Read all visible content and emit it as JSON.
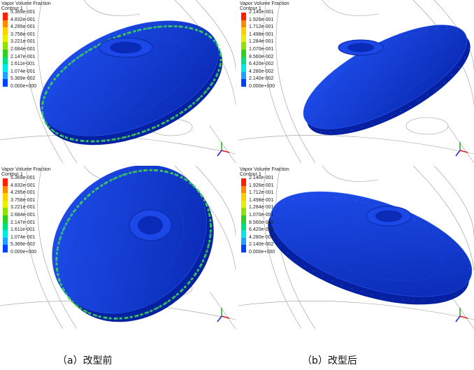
{
  "legend_colors": [
    "#ff2000",
    "#ff8800",
    "#ffd000",
    "#e8f000",
    "#90e000",
    "#30d020",
    "#00e080",
    "#00e8e8",
    "#20a0ff",
    "#0040ff"
  ],
  "disc_color": "#0a35d8",
  "panels": [
    {
      "title": "Vapor Volume Fraction",
      "subtitle": "Contour 1",
      "labels": [
        "5.369e-001",
        "4.832e-001",
        "4.295e-001",
        "3.758e-001",
        "3.221e-001",
        "2.684e-001",
        "2.147e-001",
        "1.611e-001",
        "1.074e-001",
        "5.369e-002",
        "0.000e+000"
      ]
    },
    {
      "title": "Vapor Volume Fraction",
      "subtitle": "Contour 1",
      "labels": [
        "2.140e-001",
        "1.926e-001",
        "1.712e-001",
        "1.498e-001",
        "1.284e-001",
        "1.070e-001",
        "8.560e-002",
        "6.420e-002",
        "4.280e-002",
        "2.140e-002",
        "0.000e+000"
      ]
    },
    {
      "title": "Vapor Volume Fraction",
      "subtitle": "Contour 1",
      "labels": [
        "5.369e-001",
        "4.832e-001",
        "4.295e-001",
        "3.758e-001",
        "3.221e-001",
        "2.684e-001",
        "2.147e-001",
        "1.611e-001",
        "1.074e-001",
        "5.369e-002",
        "0.000e+000"
      ]
    },
    {
      "title": "Vapor Volume Fraction",
      "subtitle": "Contour 1",
      "labels": [
        "2.140e-001",
        "1.926e-001",
        "1.712e-001",
        "1.498e-001",
        "1.284e-001",
        "1.070e-001",
        "8.560e-002",
        "6.420e-002",
        "4.280e-002",
        "2.140e-002",
        "0.000e+000"
      ]
    }
  ],
  "captions": {
    "a": "（a）改型前",
    "b": "（b）改型后"
  }
}
